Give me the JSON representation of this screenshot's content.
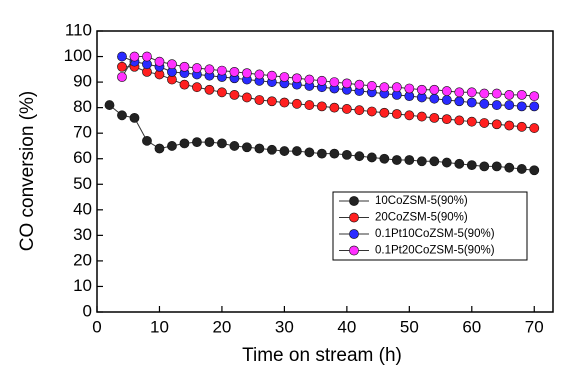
{
  "chart_data": {
    "type": "line",
    "xlabel": "Time on stream (h)",
    "ylabel": "CO conversion (%)",
    "x": [
      2,
      4,
      6,
      8,
      10,
      12,
      14,
      16,
      18,
      20,
      22,
      24,
      26,
      28,
      30,
      32,
      34,
      36,
      38,
      40,
      42,
      44,
      46,
      48,
      50,
      52,
      54,
      56,
      58,
      60,
      62,
      64,
      66,
      68,
      70
    ],
    "xlim": [
      0,
      73
    ],
    "xticks": [
      0,
      10,
      20,
      30,
      40,
      50,
      60,
      70
    ],
    "ylim": [
      0,
      110
    ],
    "yticks": [
      0,
      10,
      20,
      30,
      40,
      50,
      60,
      70,
      80,
      90,
      100,
      110
    ],
    "legend": "lower right",
    "series": [
      {
        "name": "10CoZSM-5(90%)",
        "color": "#222222",
        "values": [
          81,
          77,
          76,
          67,
          64,
          65,
          66,
          66.5,
          66.5,
          66,
          65,
          64.5,
          64,
          63.5,
          63,
          63,
          62.5,
          62,
          62,
          61.5,
          61,
          60.5,
          60,
          59.5,
          59.5,
          59,
          59,
          58.5,
          58,
          57.5,
          57,
          57,
          56.5,
          56,
          55.5
        ]
      },
      {
        "name": "20CoZSM-5(90%)",
        "color": "#ff2020",
        "values": [
          null,
          96,
          96,
          94,
          93,
          91,
          89,
          88,
          87,
          86,
          85,
          84,
          83,
          82.5,
          82,
          81.5,
          81,
          80.5,
          80,
          79.5,
          79,
          78.5,
          78,
          77.5,
          77,
          76.5,
          76,
          75.5,
          75,
          74.5,
          74,
          73.5,
          73,
          72.5,
          72
        ]
      },
      {
        "name": "0.1Pt10CoZSM-5(90%)",
        "color": "#2a2aff",
        "values": [
          null,
          100,
          98,
          97,
          96,
          94,
          93.5,
          93,
          92.5,
          92,
          91.5,
          91,
          90.5,
          90,
          89.5,
          89,
          88.5,
          88,
          87.5,
          87,
          86.5,
          86,
          85.5,
          85,
          84.5,
          84,
          83.5,
          83,
          82.5,
          82,
          81.5,
          81,
          81,
          80.5,
          80.5
        ]
      },
      {
        "name": "0.1Pt20CoZSM-5(90%)",
        "color": "#ff30ff",
        "values": [
          null,
          92,
          100,
          100,
          98,
          97,
          96,
          95.5,
          95,
          94.5,
          94,
          93.5,
          93,
          92.5,
          92,
          91.5,
          91,
          90.5,
          90,
          89.5,
          89,
          88.5,
          88,
          88,
          87.5,
          87,
          87,
          86.5,
          86,
          86,
          85.5,
          85.5,
          85,
          85,
          84.5
        ]
      }
    ]
  }
}
